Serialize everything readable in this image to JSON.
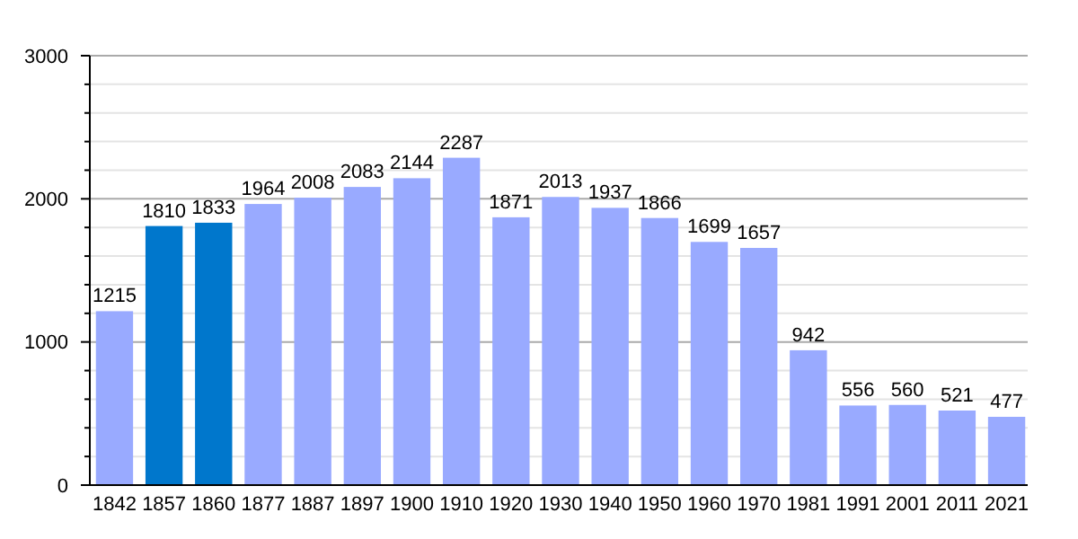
{
  "chart_data": {
    "type": "bar",
    "categories": [
      "1842",
      "1857",
      "1860",
      "1877",
      "1887",
      "1897",
      "1900",
      "1910",
      "1920",
      "1930",
      "1940",
      "1950",
      "1960",
      "1970",
      "1981",
      "1991",
      "2001",
      "2011",
      "2021"
    ],
    "values": [
      1215,
      1810,
      1833,
      1964,
      2008,
      2083,
      2144,
      2287,
      1871,
      2013,
      1937,
      1866,
      1699,
      1657,
      942,
      556,
      560,
      521,
      477
    ],
    "colors": [
      "#99aaff",
      "#0077cc",
      "#0077cc",
      "#99aaff",
      "#99aaff",
      "#99aaff",
      "#99aaff",
      "#99aaff",
      "#99aaff",
      "#99aaff",
      "#99aaff",
      "#99aaff",
      "#99aaff",
      "#99aaff",
      "#99aaff",
      "#99aaff",
      "#99aaff",
      "#99aaff",
      "#99aaff"
    ],
    "ylim": [
      0,
      3000
    ],
    "yticks": [
      0,
      {
        "value": 200,
        "label": null
      },
      {
        "value": 400,
        "label": null
      },
      {
        "value": 600,
        "label": null
      },
      {
        "value": 800,
        "label": null
      },
      1000,
      {
        "value": 1200,
        "label": null
      },
      {
        "value": 1400,
        "label": null
      },
      {
        "value": 1600,
        "label": null
      },
      {
        "value": 1800,
        "label": null
      },
      2000,
      {
        "value": 2200,
        "label": null
      },
      {
        "value": 2400,
        "label": null
      },
      {
        "value": 2600,
        "label": null
      },
      {
        "value": 2800,
        "label": null
      },
      3000
    ],
    "grid": true,
    "data_labels": true
  }
}
